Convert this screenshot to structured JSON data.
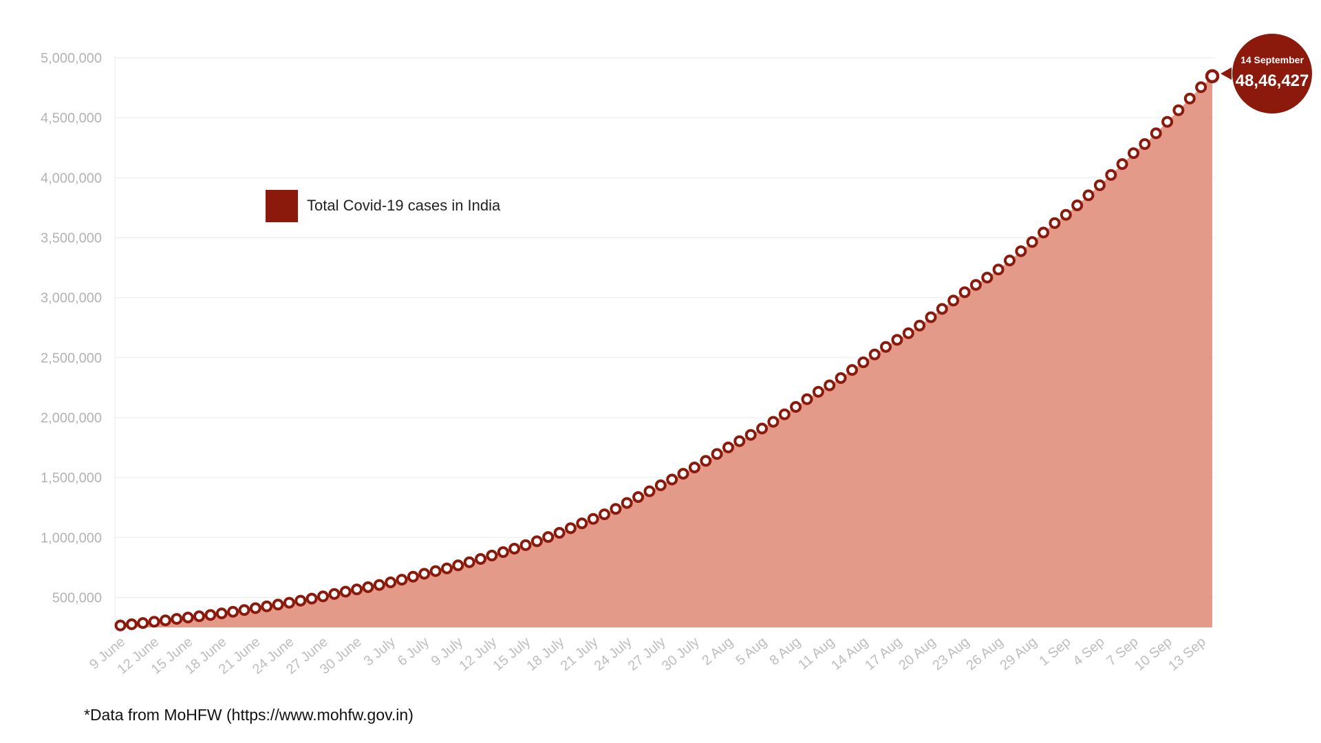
{
  "colors": {
    "marker": "#8b1a0c",
    "area": "#e49a88",
    "grid": "#e9e9e9",
    "callout": "#8b1a0c"
  },
  "source_note": "*Data from MoHFW (https://www.mohfw.gov.in)",
  "chart_data": {
    "type": "area",
    "title": "",
    "xlabel": "",
    "ylabel": "",
    "ylim": [
      250000,
      5000000
    ],
    "grid": true,
    "legend": {
      "label": "Total Covid-19 cases in India",
      "placement": "upper-left"
    },
    "y_ticks": [
      {
        "value": 500000,
        "label": "500,000"
      },
      {
        "value": 1000000,
        "label": "1,000,000"
      },
      {
        "value": 1500000,
        "label": "1,500,000"
      },
      {
        "value": 2000000,
        "label": "2,000,000"
      },
      {
        "value": 2500000,
        "label": "2,500,000"
      },
      {
        "value": 3000000,
        "label": "3,000,000"
      },
      {
        "value": 3500000,
        "label": "3,500,000"
      },
      {
        "value": 4000000,
        "label": "4,000,000"
      },
      {
        "value": 4500000,
        "label": "4,500,000"
      },
      {
        "value": 5000000,
        "label": "5,000,000"
      }
    ],
    "x_tick_labels": [
      "9 June",
      "12 June",
      "15 June",
      "18 June",
      "21 June",
      "24 June",
      "27 June",
      "30 June",
      "3 July",
      "6 July",
      "9 July",
      "12 July",
      "15 July",
      "18 July",
      "21 July",
      "24 July",
      "27 July",
      "30 July",
      "2 Aug",
      "5 Aug",
      "8 Aug",
      "11 Aug",
      "14 Aug",
      "17 Aug",
      "20 Aug",
      "23 Aug",
      "26 Aug",
      "29 Aug",
      "1 Sep",
      "4 Sep",
      "7 Sep",
      "10 Sep",
      "13 Sep"
    ],
    "x_start": "9 June",
    "x_end": "14 September",
    "series": [
      {
        "name": "Total Covid-19 cases in India",
        "values": [
          266598,
          276583,
          286579,
          297535,
          308993,
          320922,
          332424,
          343091,
          354065,
          366946,
          380532,
          395048,
          410461,
          425282,
          440215,
          456183,
          473105,
          490401,
          508953,
          528859,
          548318,
          566840,
          585493,
          604641,
          625544,
          648315,
          673165,
          697413,
          719665,
          742417,
          767296,
          793802,
          820916,
          849553,
          878254,
          906752,
          936181,
          968876,
          1003832,
          1038716,
          1077618,
          1118043,
          1155191,
          1193078,
          1238635,
          1287945,
          1336861,
          1385522,
          1435453,
          1483156,
          1531669,
          1583792,
          1638870,
          1695988,
          1750723,
          1803695,
          1855745,
          1908254,
          1964536,
          2027074,
          2088611,
          2153010,
          2215074,
          2268675,
          2329638,
          2396637,
          2461190,
          2526192,
          2589682,
          2647663,
          2702742,
          2767273,
          2836925,
          2905823,
          2975701,
          3044940,
          3106348,
          3167323,
          3234474,
          3310234,
          3387500,
          3463972,
          3542733,
          3621245,
          3691166,
          3769523,
          3853406,
          3936747,
          4023179,
          4113811,
          4204613,
          4280422,
          4370128,
          4465863,
          4562414,
          4659984,
          4754356,
          4846427
        ],
        "last_point": {
          "date": "14 September",
          "label": "48,46,427"
        }
      }
    ]
  }
}
